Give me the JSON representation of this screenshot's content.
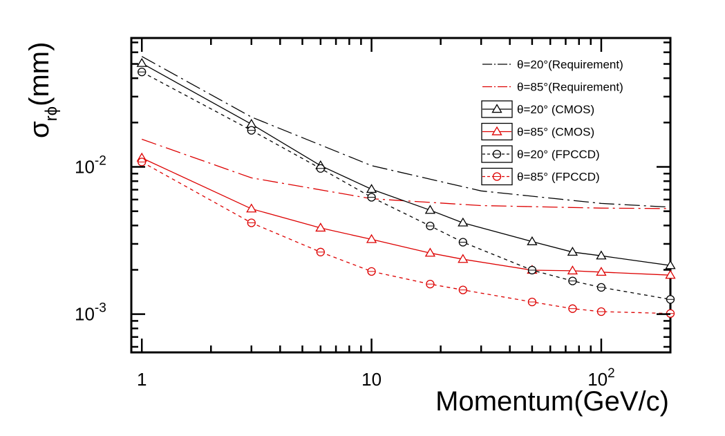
{
  "chart_data": {
    "type": "line",
    "title": "",
    "xlabel": "Momentum(GeV/c)",
    "ylabel_main": "σ",
    "ylabel_sub": "rϕ",
    "ylabel_unit": "(mm)",
    "xscale": "log",
    "yscale": "log",
    "xlim": [
      0.9,
      200
    ],
    "ylim": [
      0.00055,
      0.075
    ],
    "grid": false,
    "legend_position": "top-right",
    "x_ticks": [
      {
        "value": 1,
        "label": "1"
      },
      {
        "value": 10,
        "label": "10"
      },
      {
        "value": 100,
        "label": "10",
        "sup": "2"
      }
    ],
    "y_ticks": [
      {
        "value": 0.01,
        "label": "10",
        "sup": "-2"
      },
      {
        "value": 0.001,
        "label": "10",
        "sup": "-3"
      }
    ],
    "series": [
      {
        "name": "θ=20°(Requirement)",
        "color": "#000000",
        "dash": "22 6 3 6",
        "marker": "none",
        "x": [
          1,
          3,
          10,
          30,
          100,
          200
        ],
        "y": [
          0.0562,
          0.0218,
          0.0102,
          0.00687,
          0.00565,
          0.00533
        ]
      },
      {
        "name": "θ=85°(Requirement)",
        "color": "#dd0000",
        "dash": "22 6 3 6",
        "marker": "none",
        "x": [
          1,
          3,
          10,
          30,
          100,
          200
        ],
        "y": [
          0.0154,
          0.00842,
          0.00608,
          0.00546,
          0.00525,
          0.00521
        ]
      },
      {
        "name": "θ=20° (CMOS)",
        "color": "#000000",
        "dash": "",
        "marker": "triangle",
        "x": [
          1,
          3,
          6,
          10,
          18,
          25,
          50,
          75,
          100,
          200
        ],
        "y": [
          0.0505,
          0.0195,
          0.0102,
          0.00705,
          0.00508,
          0.00417,
          0.00311,
          0.00264,
          0.00249,
          0.00214
        ]
      },
      {
        "name": "θ=85° (CMOS)",
        "color": "#dd0000",
        "dash": "",
        "marker": "triangle",
        "x": [
          1,
          3,
          6,
          10,
          18,
          25,
          50,
          75,
          100,
          200
        ],
        "y": [
          0.0115,
          0.00519,
          0.00385,
          0.00322,
          0.0026,
          0.00236,
          0.00199,
          0.00197,
          0.00193,
          0.00184
        ]
      },
      {
        "name": "θ=20° (FPCCD)",
        "color": "#000000",
        "dash": "5 5",
        "marker": "circle",
        "x": [
          1,
          3,
          6,
          10,
          18,
          25,
          50,
          75,
          100,
          200
        ],
        "y": [
          0.0441,
          0.0177,
          0.00976,
          0.00622,
          0.00397,
          0.00308,
          0.00199,
          0.00168,
          0.00152,
          0.00126
        ]
      },
      {
        "name": "θ=85° (FPCCD)",
        "color": "#dd0000",
        "dash": "5 5",
        "marker": "circle",
        "x": [
          1,
          3,
          6,
          10,
          18,
          25,
          50,
          75,
          100,
          200
        ],
        "y": [
          0.0108,
          0.00417,
          0.00264,
          0.00195,
          0.0016,
          0.00146,
          0.00121,
          0.00109,
          0.00104,
          0.00101
        ]
      }
    ]
  }
}
